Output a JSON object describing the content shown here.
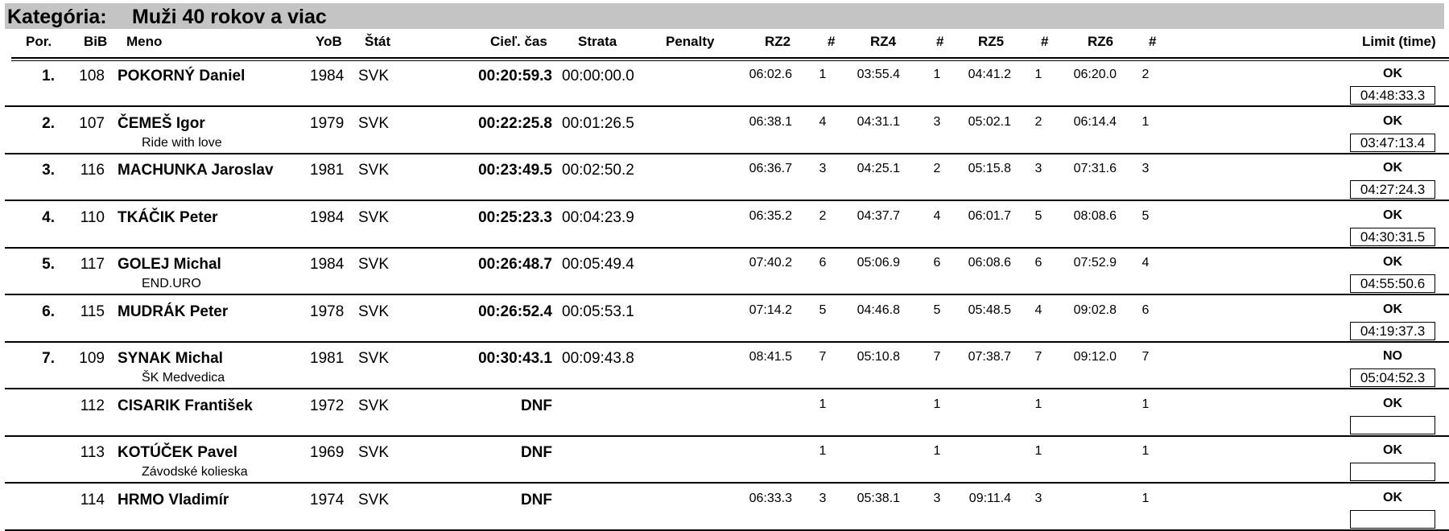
{
  "category": {
    "label": "Kategória:",
    "name": "Muži 40 rokov a viac"
  },
  "headers": {
    "por": "Por.",
    "bib": "BiB",
    "meno": "Meno",
    "yob": "YoB",
    "stat": "Štát",
    "ciel": "Cieľ. čas",
    "strata": "Strata",
    "penalty": "Penalty",
    "rz2": "RZ2",
    "n2": "#",
    "rz4": "RZ4",
    "n4": "#",
    "rz5": "RZ5",
    "n5": "#",
    "rz6": "RZ6",
    "n6": "#",
    "limit": "Limit (time)"
  },
  "rows": [
    {
      "pos": "1.",
      "bib": "108",
      "name": "POKORNÝ Daniel",
      "club": "",
      "yob": "1984",
      "nat": "SVK",
      "finish": "00:20:59.3",
      "gap": "00:00:00.0",
      "penalty": "",
      "rz2": "06:02.6",
      "n2": "1",
      "rz4": "03:55.4",
      "n4": "1",
      "rz5": "04:41.2",
      "n5": "1",
      "rz6": "06:20.0",
      "n6": "2",
      "status": "OK",
      "limit": "04:48:33.3"
    },
    {
      "pos": "2.",
      "bib": "107",
      "name": "ČEMEŠ Igor",
      "club": "Ride with love",
      "yob": "1979",
      "nat": "SVK",
      "finish": "00:22:25.8",
      "gap": "00:01:26.5",
      "penalty": "",
      "rz2": "06:38.1",
      "n2": "4",
      "rz4": "04:31.1",
      "n4": "3",
      "rz5": "05:02.1",
      "n5": "2",
      "rz6": "06:14.4",
      "n6": "1",
      "status": "OK",
      "limit": "03:47:13.4"
    },
    {
      "pos": "3.",
      "bib": "116",
      "name": "MACHUNKA Jaroslav",
      "club": "",
      "yob": "1981",
      "nat": "SVK",
      "finish": "00:23:49.5",
      "gap": "00:02:50.2",
      "penalty": "",
      "rz2": "06:36.7",
      "n2": "3",
      "rz4": "04:25.1",
      "n4": "2",
      "rz5": "05:15.8",
      "n5": "3",
      "rz6": "07:31.6",
      "n6": "3",
      "status": "OK",
      "limit": "04:27:24.3"
    },
    {
      "pos": "4.",
      "bib": "110",
      "name": "TKÁČIK Peter",
      "club": "",
      "yob": "1984",
      "nat": "SVK",
      "finish": "00:25:23.3",
      "gap": "00:04:23.9",
      "penalty": "",
      "rz2": "06:35.2",
      "n2": "2",
      "rz4": "04:37.7",
      "n4": "4",
      "rz5": "06:01.7",
      "n5": "5",
      "rz6": "08:08.6",
      "n6": "5",
      "status": "OK",
      "limit": "04:30:31.5"
    },
    {
      "pos": "5.",
      "bib": "117",
      "name": "GOLEJ Michal",
      "club": "END.URO",
      "yob": "1984",
      "nat": "SVK",
      "finish": "00:26:48.7",
      "gap": "00:05:49.4",
      "penalty": "",
      "rz2": "07:40.2",
      "n2": "6",
      "rz4": "05:06.9",
      "n4": "6",
      "rz5": "06:08.6",
      "n5": "6",
      "rz6": "07:52.9",
      "n6": "4",
      "status": "OK",
      "limit": "04:55:50.6"
    },
    {
      "pos": "6.",
      "bib": "115",
      "name": "MUDRÁK Peter",
      "club": "",
      "yob": "1978",
      "nat": "SVK",
      "finish": "00:26:52.4",
      "gap": "00:05:53.1",
      "penalty": "",
      "rz2": "07:14.2",
      "n2": "5",
      "rz4": "04:46.8",
      "n4": "5",
      "rz5": "05:48.5",
      "n5": "4",
      "rz6": "09:02.8",
      "n6": "6",
      "status": "OK",
      "limit": "04:19:37.3"
    },
    {
      "pos": "7.",
      "bib": "109",
      "name": "SYNAK Michal",
      "club": "ŠK Medvedica",
      "yob": "1981",
      "nat": "SVK",
      "finish": "00:30:43.1",
      "gap": "00:09:43.8",
      "penalty": "",
      "rz2": "08:41.5",
      "n2": "7",
      "rz4": "05:10.8",
      "n4": "7",
      "rz5": "07:38.7",
      "n5": "7",
      "rz6": "09:12.0",
      "n6": "7",
      "status": "NO",
      "limit": "05:04:52.3"
    },
    {
      "pos": "",
      "bib": "112",
      "name": "CISARIK František",
      "club": "",
      "yob": "1972",
      "nat": "SVK",
      "finish": "DNF",
      "gap": "",
      "penalty": "",
      "rz2": "",
      "n2": "1",
      "rz4": "",
      "n4": "1",
      "rz5": "",
      "n5": "1",
      "rz6": "",
      "n6": "1",
      "status": "OK",
      "limit": ""
    },
    {
      "pos": "",
      "bib": "113",
      "name": "KOTÚČEK Pavel",
      "club": "Závodské kolieska",
      "yob": "1969",
      "nat": "SVK",
      "finish": "DNF",
      "gap": "",
      "penalty": "",
      "rz2": "",
      "n2": "1",
      "rz4": "",
      "n4": "1",
      "rz5": "",
      "n5": "1",
      "rz6": "",
      "n6": "1",
      "status": "OK",
      "limit": ""
    },
    {
      "pos": "",
      "bib": "114",
      "name": "HRMO Vladimír",
      "club": "",
      "yob": "1974",
      "nat": "SVK",
      "finish": "DNF",
      "gap": "",
      "penalty": "",
      "rz2": "06:33.3",
      "n2": "3",
      "rz4": "05:38.1",
      "n4": "3",
      "rz5": "09:11.4",
      "n5": "3",
      "rz6": "",
      "n6": "1",
      "status": "OK",
      "limit": ""
    }
  ]
}
